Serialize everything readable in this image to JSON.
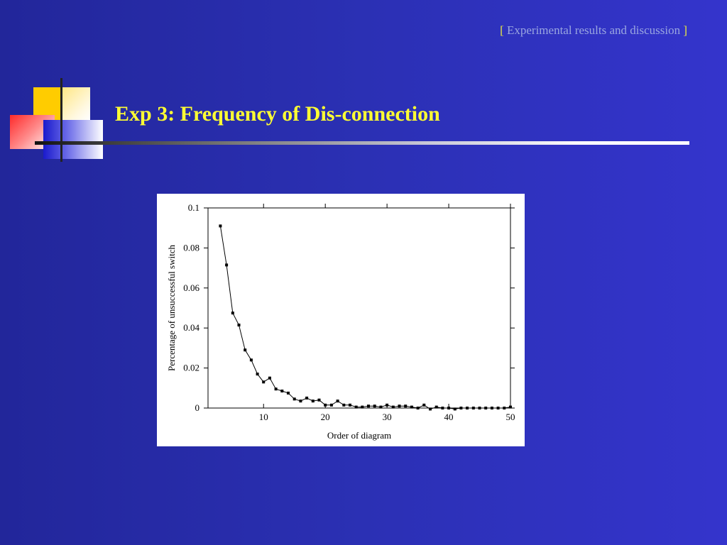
{
  "header": {
    "section_open": "[ ",
    "section_label": "Experimental results and discussion",
    "section_close": " ]"
  },
  "slide": {
    "title": "Exp 3: Frequency of Dis-connection"
  },
  "colors": {
    "title": "#ffff33",
    "section_bracket": "#e8e840",
    "section_text": "#9aa6e0",
    "background_left": "#22269a",
    "background_right": "#3434cc"
  },
  "chart_data": {
    "type": "line",
    "xlabel": "Order of diagram",
    "ylabel": "Percentage of unsuccessful switch",
    "xlim": [
      1,
      50
    ],
    "ylim": [
      0,
      0.1
    ],
    "x_ticks": [
      10,
      20,
      30,
      40,
      50
    ],
    "y_ticks": [
      {
        "value": 0,
        "label": "0"
      },
      {
        "value": 0.02,
        "label": "0.02"
      },
      {
        "value": 0.04,
        "label": "0.04"
      },
      {
        "value": 0.06,
        "label": "0.06"
      },
      {
        "value": 0.08,
        "label": "0.08"
      },
      {
        "value": 0.1,
        "label": "0.1"
      }
    ],
    "grid": false,
    "marker": "square",
    "x": [
      3,
      4,
      5,
      6,
      7,
      8,
      9,
      10,
      11,
      12,
      13,
      14,
      15,
      16,
      17,
      18,
      19,
      20,
      21,
      22,
      23,
      24,
      25,
      26,
      27,
      28,
      29,
      30,
      31,
      32,
      33,
      34,
      35,
      36,
      37,
      38,
      39,
      40,
      41,
      42,
      43,
      44,
      45,
      46,
      47,
      48,
      49,
      50
    ],
    "values": [
      0.091,
      0.0715,
      0.0475,
      0.0415,
      0.029,
      0.024,
      0.017,
      0.013,
      0.015,
      0.0095,
      0.0085,
      0.0075,
      0.0045,
      0.0035,
      0.005,
      0.0035,
      0.004,
      0.0015,
      0.0015,
      0.0035,
      0.0015,
      0.0015,
      0.0005,
      0.0005,
      0.001,
      0.001,
      0.0005,
      0.0015,
      0.0005,
      0.001,
      0.001,
      0.0005,
      0,
      0.0015,
      -0.0005,
      0.0005,
      0,
      0,
      -0.0005,
      0,
      0,
      0,
      0,
      0,
      0,
      0,
      0,
      0.0005
    ]
  }
}
